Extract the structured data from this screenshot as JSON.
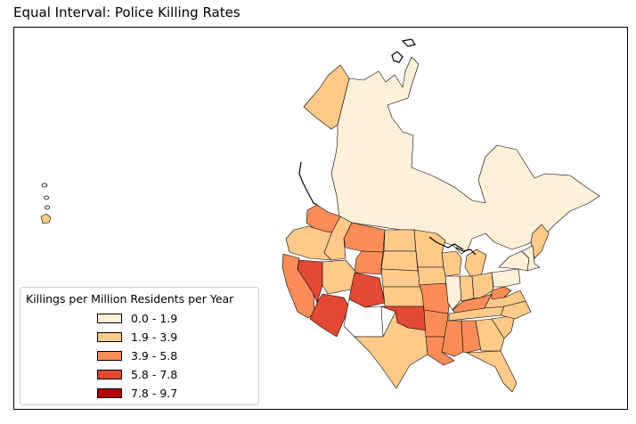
{
  "title": "Equal Interval: Police Killing Rates",
  "legend": {
    "title": "Killings per Million Residents per Year",
    "items": [
      {
        "label": "0.0 - 1.9",
        "color": "#fff0d9"
      },
      {
        "label": "1.9 - 3.9",
        "color": "#fdca8a"
      },
      {
        "label": "3.9 - 5.8",
        "color": "#fc8d59"
      },
      {
        "label": "5.8 - 7.8",
        "color": "#e34a33"
      },
      {
        "label": "7.8 - 9.7",
        "color": "#b30000"
      }
    ]
  },
  "regions": [
    {
      "id": "canada",
      "class": 0
    },
    {
      "id": "alaska-mainland",
      "class": 1
    },
    {
      "id": "hawaii",
      "class": 1
    },
    {
      "id": "washington",
      "class": 2
    },
    {
      "id": "oregon",
      "class": 1
    },
    {
      "id": "california",
      "class": 2
    },
    {
      "id": "nevada",
      "class": 3
    },
    {
      "id": "idaho",
      "class": 1
    },
    {
      "id": "montana",
      "class": 2
    },
    {
      "id": "wyoming",
      "class": 2
    },
    {
      "id": "utah",
      "class": 1
    },
    {
      "id": "arizona",
      "class": 3
    },
    {
      "id": "colorado",
      "class": 3
    },
    {
      "id": "new-mexico",
      "class": null
    },
    {
      "id": "north-dakota",
      "class": 1
    },
    {
      "id": "south-dakota",
      "class": 1
    },
    {
      "id": "nebraska",
      "class": 1
    },
    {
      "id": "kansas",
      "class": 1
    },
    {
      "id": "oklahoma",
      "class": 3
    },
    {
      "id": "texas",
      "class": 1
    },
    {
      "id": "minnesota",
      "class": 1
    },
    {
      "id": "iowa",
      "class": 1
    },
    {
      "id": "missouri",
      "class": 2
    },
    {
      "id": "arkansas",
      "class": 2
    },
    {
      "id": "louisiana",
      "class": 2
    },
    {
      "id": "wisconsin",
      "class": 1
    },
    {
      "id": "illinois",
      "class": 0
    },
    {
      "id": "michigan",
      "class": 1
    },
    {
      "id": "indiana",
      "class": 1
    },
    {
      "id": "ohio",
      "class": 1
    },
    {
      "id": "kentucky",
      "class": 2
    },
    {
      "id": "tennessee",
      "class": 1
    },
    {
      "id": "mississippi",
      "class": 2
    },
    {
      "id": "alabama",
      "class": 2
    },
    {
      "id": "georgia",
      "class": 1
    },
    {
      "id": "florida",
      "class": 1
    },
    {
      "id": "south-carolina",
      "class": 1
    },
    {
      "id": "north-carolina",
      "class": 1
    },
    {
      "id": "virginia",
      "class": 1
    },
    {
      "id": "west-virginia",
      "class": 2
    },
    {
      "id": "pennsylvania",
      "class": 0
    },
    {
      "id": "new-york",
      "class": 0
    },
    {
      "id": "maine",
      "class": 1
    },
    {
      "id": "vermont-nh",
      "class": 0
    }
  ]
}
